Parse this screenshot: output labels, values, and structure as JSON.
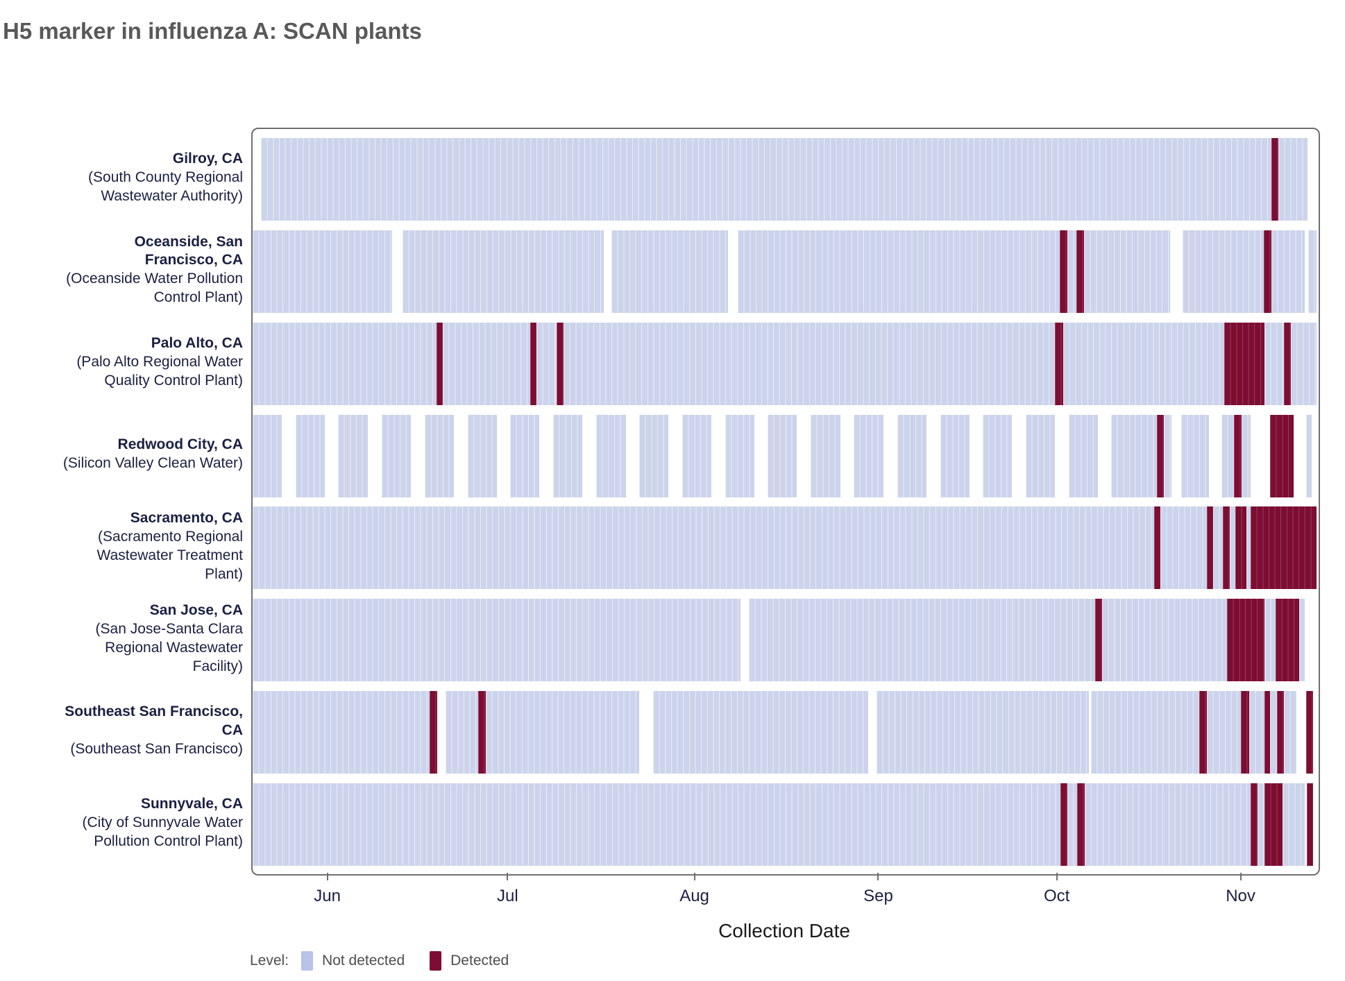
{
  "title": "H5 marker in influenza A: SCAN plants",
  "legend": {
    "label": "Level:",
    "items": [
      {
        "label": "Not detected",
        "state": "n",
        "color": "#b7c3e9"
      },
      {
        "label": "Detected",
        "state": "d",
        "color": "#7d0d32"
      }
    ]
  },
  "chart_data": {
    "type": "heatmap",
    "title": "H5 marker in influenza A: SCAN plants",
    "xlabel": "Collection Date",
    "x_domain_days": [
      0,
      178
    ],
    "x_ticks": [
      {
        "label": "Jun",
        "day": 12.7
      },
      {
        "label": "Jul",
        "day": 42.8
      },
      {
        "label": "Aug",
        "day": 74.0
      },
      {
        "label": "Sep",
        "day": 104.7
      },
      {
        "label": "Oct",
        "day": 134.5
      },
      {
        "label": "Nov",
        "day": 165.2
      }
    ],
    "states": {
      "n": {
        "label": "Not detected",
        "color": "#ccd4ec"
      },
      "d": {
        "label": "Detected",
        "color": "#7d0d32"
      }
    },
    "rows": [
      {
        "city": "Gilroy, CA",
        "facility": "(South County Regional Wastewater Authority)",
        "segments": [
          [
            "n",
            1.4,
            170.1
          ],
          [
            "d",
            170.1,
            171.3
          ],
          [
            "n",
            171.3,
            176.2
          ]
        ]
      },
      {
        "city": "Oceanside, San Francisco, CA",
        "facility": "(Oceanside Water Pollution Control Plant)",
        "segments": [
          [
            "n",
            0,
            23.3
          ],
          [
            "n",
            25.0,
            58.6
          ],
          [
            "n",
            59.9,
            79.4
          ],
          [
            "n",
            81.0,
            134.8
          ],
          [
            "d",
            134.8,
            136.0
          ],
          [
            "n",
            136.0,
            137.6
          ],
          [
            "d",
            137.6,
            138.8
          ],
          [
            "n",
            138.8,
            153.2
          ],
          [
            "n",
            155.3,
            168.9
          ],
          [
            "d",
            168.9,
            170.1
          ],
          [
            "n",
            170.1,
            175.7
          ],
          [
            "n",
            176.3,
            177.6
          ]
        ]
      },
      {
        "city": "Palo Alto, CA",
        "facility": "(Palo Alto Regional Water Quality Control Plant)",
        "segments": [
          [
            "n",
            0,
            30.7
          ],
          [
            "d",
            30.7,
            31.8
          ],
          [
            "n",
            31.8,
            46.3
          ],
          [
            "d",
            46.3,
            47.4
          ],
          [
            "n",
            47.4,
            50.7
          ],
          [
            "d",
            50.7,
            51.9
          ],
          [
            "n",
            51.9,
            134.0
          ],
          [
            "d",
            134.0,
            135.4
          ],
          [
            "n",
            135.4,
            162.2
          ],
          [
            "d",
            162.2,
            169.0
          ],
          [
            "n",
            169.0,
            172.2
          ],
          [
            "d",
            172.2,
            173.4
          ],
          [
            "n",
            173.4,
            177.6
          ]
        ]
      },
      {
        "city": "Redwood City, CA",
        "facility": "(Silicon Valley Clean Water)",
        "segments": [
          [
            "n",
            0,
            4.9
          ],
          [
            "n",
            7.2,
            12.1
          ],
          [
            "n",
            14.3,
            19.2
          ],
          [
            "n",
            21.5,
            26.4
          ],
          [
            "n",
            28.7,
            33.6
          ],
          [
            "n",
            35.9,
            40.8
          ],
          [
            "n",
            43.0,
            47.9
          ],
          [
            "n",
            50.2,
            55.1
          ],
          [
            "n",
            57.4,
            62.3
          ],
          [
            "n",
            64.5,
            69.4
          ],
          [
            "n",
            71.7,
            76.6
          ],
          [
            "n",
            78.9,
            83.8
          ],
          [
            "n",
            86.0,
            90.9
          ],
          [
            "n",
            93.2,
            98.1
          ],
          [
            "n",
            100.4,
            105.3
          ],
          [
            "n",
            107.6,
            112.5
          ],
          [
            "n",
            114.8,
            119.7
          ],
          [
            "n",
            121.9,
            126.8
          ],
          [
            "n",
            129.1,
            134.0
          ],
          [
            "n",
            136.3,
            141.2
          ],
          [
            "n",
            143.4,
            151.0
          ],
          [
            "d",
            151.0,
            152.2
          ],
          [
            "n",
            152.2,
            153.4
          ],
          [
            "n",
            155.1,
            159.7
          ],
          [
            "n",
            161.8,
            163.9
          ],
          [
            "d",
            163.9,
            165.1
          ],
          [
            "n",
            165.1,
            166.7
          ],
          [
            "d",
            169.9,
            173.8
          ],
          [
            "n",
            175.9,
            176.8
          ]
        ]
      },
      {
        "city": "Sacramento, CA",
        "facility": "(Sacramento Regional Wastewater Treatment Plant)",
        "segments": [
          [
            "n",
            0,
            150.5
          ],
          [
            "d",
            150.5,
            151.6
          ],
          [
            "n",
            151.6,
            159.3
          ],
          [
            "d",
            159.3,
            160.4
          ],
          [
            "n",
            160.4,
            162.0
          ],
          [
            "d",
            162.0,
            163.2
          ],
          [
            "n",
            163.2,
            164.1
          ],
          [
            "d",
            164.1,
            166.0
          ],
          [
            "n",
            166.0,
            166.7
          ],
          [
            "d",
            166.7,
            177.6
          ]
        ]
      },
      {
        "city": "San Jose, CA",
        "facility": "(San Jose-Santa Clara Regional Wastewater Facility)",
        "segments": [
          [
            "n",
            0,
            81.5
          ],
          [
            "n",
            82.9,
            140.7
          ],
          [
            "d",
            140.7,
            141.9
          ],
          [
            "n",
            141.9,
            162.7
          ],
          [
            "d",
            162.7,
            169.0
          ],
          [
            "n",
            169.0,
            170.8
          ],
          [
            "d",
            170.8,
            174.8
          ],
          [
            "n",
            174.8,
            175.7
          ]
        ]
      },
      {
        "city": "Southeast San Francisco, CA",
        "facility": "(Southeast San Francisco)",
        "segments": [
          [
            "n",
            0,
            29.6
          ],
          [
            "d",
            29.6,
            30.8
          ],
          [
            "n",
            32.2,
            37.7
          ],
          [
            "d",
            37.7,
            38.9
          ],
          [
            "n",
            38.9,
            64.6
          ],
          [
            "n",
            66.9,
            102.8
          ],
          [
            "n",
            104.2,
            139.6
          ],
          [
            "n",
            140.0,
            158.1
          ],
          [
            "d",
            158.1,
            159.3
          ],
          [
            "n",
            159.3,
            165.0
          ],
          [
            "d",
            165.0,
            166.4
          ],
          [
            "n",
            166.4,
            169.0
          ],
          [
            "d",
            169.0,
            169.9
          ],
          [
            "n",
            169.9,
            171.1
          ],
          [
            "d",
            171.1,
            172.2
          ],
          [
            "n",
            172.2,
            174.3
          ],
          [
            "d",
            175.9,
            177.1
          ]
        ]
      },
      {
        "city": "Sunnyvale, CA",
        "facility": "(City of Sunnyvale Water Pollution Control Plant)",
        "segments": [
          [
            "n",
            0,
            134.9
          ],
          [
            "d",
            134.9,
            136.1
          ],
          [
            "n",
            136.1,
            137.7
          ],
          [
            "d",
            137.7,
            138.9
          ],
          [
            "n",
            138.9,
            166.7
          ],
          [
            "d",
            166.7,
            167.8
          ],
          [
            "n",
            167.8,
            169.0
          ],
          [
            "d",
            169.0,
            172.0
          ],
          [
            "n",
            172.0,
            175.7
          ],
          [
            "d",
            176.0,
            177.1
          ]
        ]
      }
    ],
    "layout": {
      "legend_position": "bottom-left",
      "grid": false
    }
  }
}
